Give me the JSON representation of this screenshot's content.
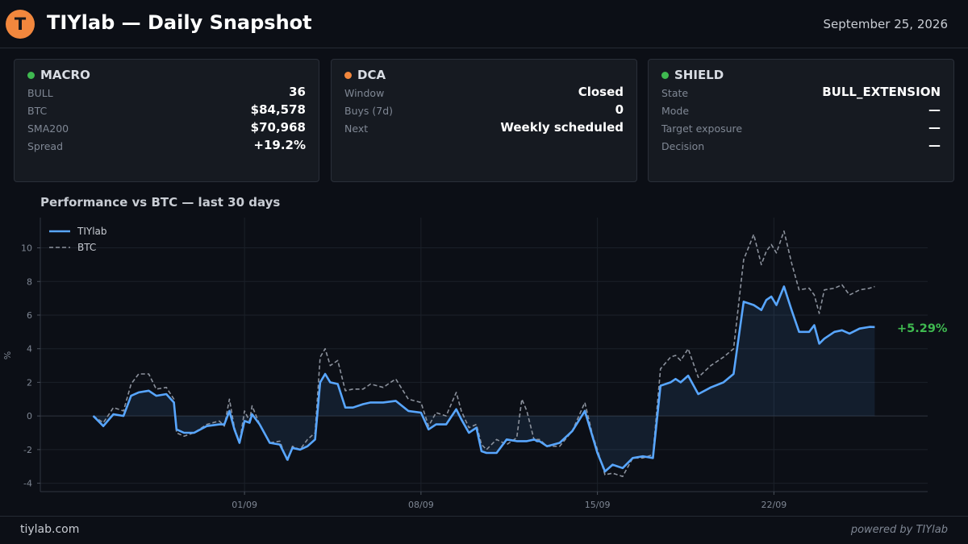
{
  "header": {
    "logo_letter": "T",
    "title": "TIYlab — Daily Snapshot",
    "date": "September 25, 2026"
  },
  "cards": [
    {
      "title": "MACRO",
      "dot_color": "#3fb950",
      "rows": [
        {
          "label": "BULL",
          "value": "36"
        },
        {
          "label": "BTC",
          "value": "$84,578"
        },
        {
          "label": "SMA200",
          "value": "$70,968"
        },
        {
          "label": "Spread",
          "value": "+19.2%"
        }
      ]
    },
    {
      "title": "DCA",
      "dot_color": "#f2873d",
      "rows": [
        {
          "label": "Window",
          "value": "Closed"
        },
        {
          "label": "Buys (7d)",
          "value": "0"
        },
        {
          "label": "Next",
          "value": "Weekly scheduled"
        }
      ]
    },
    {
      "title": "SHIELD",
      "dot_color": "#3fb950",
      "rows": [
        {
          "label": "State",
          "value": "BULL_EXTENSION"
        },
        {
          "label": "Mode",
          "value": "—"
        },
        {
          "label": "Target exposure",
          "value": "—"
        },
        {
          "label": "Decision",
          "value": "—"
        }
      ]
    }
  ],
  "chart": {
    "title": "Performance vs BTC — last 30 days"
  },
  "chart_data": {
    "type": "line",
    "xlabel": "",
    "ylabel": "%",
    "ylim": [
      -4.5,
      11.8
    ],
    "yticks": [
      -4,
      -2,
      0,
      2,
      4,
      6,
      8,
      10
    ],
    "xlim": [
      -3.1,
      32.1
    ],
    "xticks": [
      {
        "x": 5,
        "label": "01/09"
      },
      {
        "x": 12,
        "label": "08/09"
      },
      {
        "x": 19,
        "label": "15/09"
      },
      {
        "x": 26,
        "label": "22/09"
      }
    ],
    "grid": true,
    "legend": "top-left",
    "end_label": "+5.29%",
    "end_label_color": "#3fb950",
    "series": [
      {
        "name": "TIYlab",
        "color": "#58a6ff",
        "style": "solid",
        "fill": true,
        "x": [
          -1.0,
          -0.6,
          -0.2,
          0.2,
          0.5,
          0.8,
          1.2,
          1.5,
          1.9,
          2.2,
          2.3,
          2.6,
          3.0,
          3.5,
          4.0,
          4.2,
          4.4,
          4.6,
          4.8,
          5.0,
          5.2,
          5.3,
          5.6,
          6.0,
          6.4,
          6.7,
          6.9,
          7.2,
          7.5,
          7.8,
          8.0,
          8.2,
          8.4,
          8.7,
          9.0,
          9.3,
          9.7,
          10.0,
          10.5,
          11.0,
          11.5,
          12.0,
          12.3,
          12.6,
          13.0,
          13.4,
          13.6,
          13.9,
          14.2,
          14.4,
          14.6,
          15.0,
          15.4,
          15.8,
          16.0,
          16.2,
          16.5,
          16.6,
          16.7,
          17.0,
          17.5,
          18.0,
          18.5,
          18.8,
          19.0,
          19.3,
          19.6,
          20.0,
          20.4,
          20.8,
          21.2,
          21.5,
          21.9,
          22.1,
          22.3,
          22.6,
          23.0,
          23.5,
          24.0,
          24.4,
          24.8,
          25.2,
          25.5,
          25.7,
          25.9,
          26.1,
          26.4,
          26.7,
          27.0,
          27.4,
          27.6,
          27.8,
          28.0,
          28.4,
          28.7,
          29.0,
          29.4,
          29.8,
          30.0
        ],
        "y": [
          0.0,
          -0.6,
          0.1,
          0.0,
          1.2,
          1.4,
          1.5,
          1.2,
          1.3,
          0.8,
          -0.8,
          -1.0,
          -1.0,
          -0.6,
          -0.5,
          -0.5,
          0.3,
          -0.8,
          -1.6,
          -0.3,
          -0.4,
          0.1,
          -0.5,
          -1.6,
          -1.7,
          -2.6,
          -1.9,
          -2.0,
          -1.8,
          -1.4,
          2.0,
          2.5,
          2.0,
          1.9,
          0.5,
          0.5,
          0.7,
          0.8,
          0.8,
          0.9,
          0.3,
          0.2,
          -0.8,
          -0.5,
          -0.5,
          0.4,
          -0.2,
          -1.0,
          -0.7,
          -2.1,
          -2.2,
          -2.2,
          -1.4,
          -1.5,
          -1.5,
          -1.5,
          -1.4,
          -1.5,
          -1.5,
          -1.8,
          -1.6,
          -0.9,
          0.3,
          -1.2,
          -2.2,
          -3.3,
          -2.9,
          -3.1,
          -2.5,
          -2.4,
          -2.5,
          1.8,
          2.0,
          2.2,
          2.0,
          2.4,
          1.3,
          1.7,
          2.0,
          2.5,
          6.8,
          6.6,
          6.3,
          6.9,
          7.1,
          6.6,
          7.7,
          6.3,
          5.0,
          5.0,
          5.4,
          4.3,
          4.6,
          5.0,
          5.1,
          4.9,
          5.2,
          5.3,
          5.29
        ]
      },
      {
        "name": "BTC",
        "color": "#8b919c",
        "style": "dashed",
        "fill": false,
        "x": [
          -1.0,
          -0.6,
          -0.2,
          0.2,
          0.5,
          0.8,
          1.2,
          1.5,
          1.9,
          2.2,
          2.3,
          2.6,
          3.0,
          3.5,
          4.0,
          4.2,
          4.4,
          4.6,
          4.8,
          5.0,
          5.2,
          5.3,
          5.6,
          6.0,
          6.4,
          6.7,
          6.9,
          7.2,
          7.5,
          7.8,
          8.0,
          8.2,
          8.4,
          8.7,
          9.0,
          9.3,
          9.7,
          10.0,
          10.5,
          11.0,
          11.5,
          12.0,
          12.3,
          12.6,
          13.0,
          13.4,
          13.6,
          13.9,
          14.2,
          14.4,
          14.6,
          15.0,
          15.4,
          15.8,
          16.0,
          16.2,
          16.5,
          16.6,
          16.7,
          17.0,
          17.5,
          18.0,
          18.5,
          18.8,
          19.0,
          19.3,
          19.6,
          20.0,
          20.4,
          20.8,
          21.2,
          21.5,
          21.9,
          22.1,
          22.3,
          22.6,
          23.0,
          23.5,
          24.0,
          24.4,
          24.8,
          25.2,
          25.5,
          25.7,
          25.9,
          26.1,
          26.4,
          26.7,
          27.0,
          27.4,
          27.6,
          27.8,
          28.0,
          28.4,
          28.7,
          29.0,
          29.4,
          29.8,
          30.0
        ],
        "y": [
          0.0,
          -0.4,
          0.5,
          0.3,
          1.9,
          2.5,
          2.5,
          1.6,
          1.7,
          1.0,
          -1.0,
          -1.2,
          -1.0,
          -0.5,
          -0.3,
          -0.6,
          1.0,
          -0.7,
          -1.6,
          0.3,
          -0.3,
          0.6,
          -0.5,
          -1.6,
          -1.5,
          -2.7,
          -1.8,
          -2.0,
          -1.4,
          -1.0,
          3.5,
          4.0,
          3.0,
          3.3,
          1.5,
          1.6,
          1.6,
          1.9,
          1.7,
          2.2,
          1.0,
          0.8,
          -0.6,
          0.2,
          0.0,
          1.4,
          0.3,
          -0.7,
          -0.5,
          -1.7,
          -2.0,
          -1.4,
          -1.7,
          -1.3,
          1.0,
          0.3,
          -1.5,
          -1.4,
          -1.4,
          -1.8,
          -1.8,
          -0.9,
          0.8,
          -1.1,
          -2.0,
          -3.5,
          -3.4,
          -3.6,
          -2.5,
          -2.5,
          -2.3,
          2.8,
          3.5,
          3.6,
          3.3,
          4.0,
          2.3,
          3.0,
          3.5,
          4.0,
          9.3,
          10.8,
          9.0,
          9.8,
          10.2,
          9.7,
          11.0,
          9.1,
          7.5,
          7.6,
          7.2,
          6.1,
          7.5,
          7.6,
          7.8,
          7.2,
          7.5,
          7.6,
          7.7
        ]
      }
    ]
  },
  "footer": {
    "site": "tiylab.com",
    "powered": "powered by TIYlab"
  }
}
